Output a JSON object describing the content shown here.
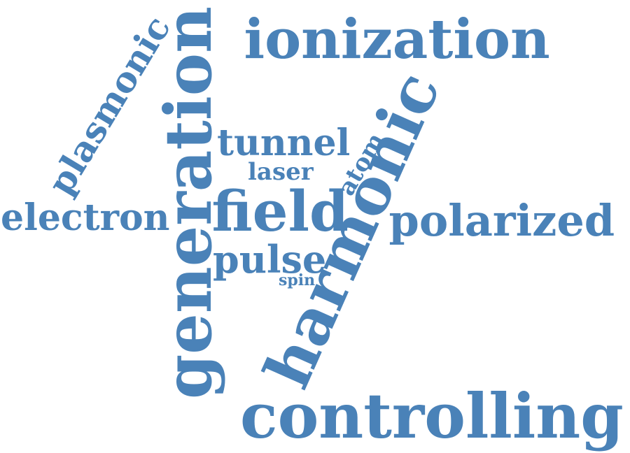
{
  "word_cloud": {
    "color": "#4a82b8",
    "words": [
      {
        "text": "ionization",
        "orientation": "horizontal"
      },
      {
        "text": "generation",
        "orientation": "vertical"
      },
      {
        "text": "harmonic",
        "orientation": "diagonal"
      },
      {
        "text": "plasmonic",
        "orientation": "diagonal"
      },
      {
        "text": "tunnel",
        "orientation": "horizontal"
      },
      {
        "text": "laser",
        "orientation": "horizontal"
      },
      {
        "text": "atom",
        "orientation": "diagonal"
      },
      {
        "text": "electron",
        "orientation": "horizontal"
      },
      {
        "text": "field",
        "orientation": "horizontal"
      },
      {
        "text": "polarized",
        "orientation": "horizontal"
      },
      {
        "text": "pulse",
        "orientation": "horizontal"
      },
      {
        "text": "spin",
        "orientation": "horizontal"
      },
      {
        "text": "controlling",
        "orientation": "horizontal"
      }
    ]
  }
}
